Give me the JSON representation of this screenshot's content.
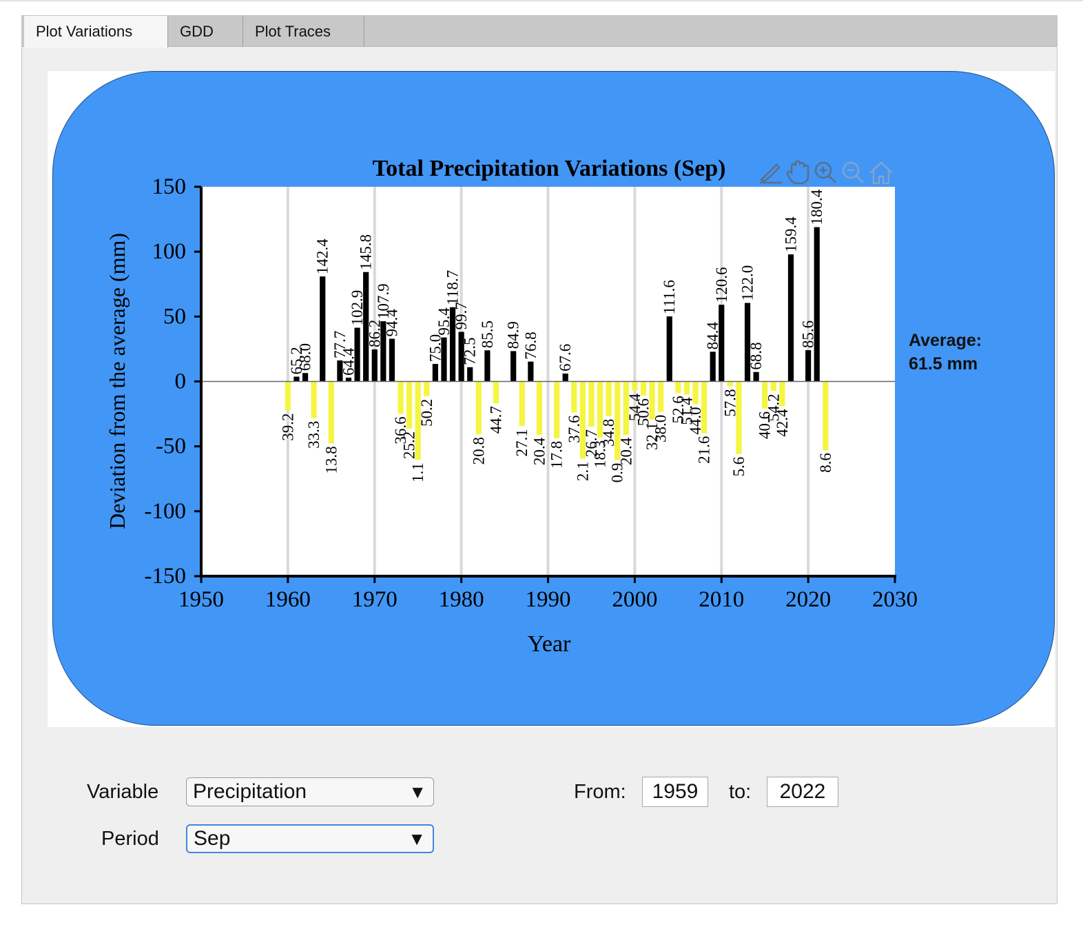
{
  "tabs": [
    {
      "label": "Plot Variations",
      "active": true
    },
    {
      "label": "GDD",
      "active": false
    },
    {
      "label": "Plot Traces",
      "active": false
    }
  ],
  "average": {
    "label": "Average:",
    "value": "61.5 mm"
  },
  "controls": {
    "variable_label": "Variable",
    "variable_value": "Precipitation",
    "period_label": "Period",
    "period_value": "Sep",
    "from_label": "From:",
    "from_value": "1959",
    "to_label": "to:",
    "to_value": "2022",
    "arrow": "▼"
  },
  "toolbar": [
    "edit-icon",
    "pan-icon",
    "zoom-in-icon",
    "zoom-out-icon",
    "home-icon"
  ],
  "colors": {
    "above": "#000000",
    "below": "#f5f542",
    "background": "#4296f5"
  },
  "chart_data": {
    "type": "bar",
    "title": "Total Precipitation Variations (Sep)",
    "xlabel": "Year",
    "ylabel": "Deviation from the average (mm)",
    "xlim": [
      1950,
      2030
    ],
    "ylim": [
      -150,
      150
    ],
    "xticks": [
      1950,
      1960,
      1970,
      1980,
      1990,
      2000,
      2010,
      2020,
      2030
    ],
    "yticks": [
      150,
      100,
      50,
      0,
      -50,
      -100,
      -150
    ],
    "grid": "x",
    "note": "bar height = total precipitation minus average (61.5 mm); label = total precipitation",
    "x": [
      1960,
      1961,
      1962,
      1963,
      1964,
      1965,
      1966,
      1967,
      1968,
      1969,
      1970,
      1971,
      1972,
      1973,
      1974,
      1975,
      1976,
      1977,
      1978,
      1979,
      1980,
      1981,
      1982,
      1983,
      1984,
      1986,
      1987,
      1988,
      1989,
      1991,
      1992,
      1993,
      1994,
      1995,
      1996,
      1997,
      1998,
      1999,
      2000,
      2001,
      2002,
      2003,
      2004,
      2005,
      2006,
      2007,
      2008,
      2009,
      2010,
      2011,
      2012,
      2013,
      2014,
      2015,
      2016,
      2017,
      2018,
      2020,
      2021,
      2022
    ],
    "labels": [
      "39.2",
      "65.2",
      "68.0",
      "33.3",
      "142.4",
      "13.8",
      "77.7",
      "64.4",
      "102.9",
      "145.8",
      "86.2",
      "107.9",
      "94.4",
      "36.6",
      "25.2",
      "1.1",
      "50.2",
      "75.0",
      "95.4",
      "118.7",
      "99.7",
      "72.5",
      "20.8",
      "85.5",
      "44.7",
      "84.9",
      "27.1",
      "76.8",
      "20.4",
      "17.8",
      "67.6",
      "37.6",
      "2.1",
      "26.7",
      "18.3",
      "34.8",
      "0.9",
      "20.4",
      "54.4",
      "50.6",
      "32.1",
      "38.0",
      "111.6",
      "52.6",
      "51.4",
      "44.0",
      "21.6",
      "84.4",
      "120.6",
      "57.8",
      "5.6",
      "122.0",
      "68.8",
      "40.6",
      "54.2",
      "42.4",
      "159.4",
      "85.6",
      "180.4",
      "8.6"
    ],
    "values": [
      -22.3,
      3.7,
      6.5,
      -28.2,
      80.9,
      -47.7,
      16.2,
      2.9,
      41.4,
      84.3,
      24.7,
      46.4,
      32.9,
      -24.9,
      -36.3,
      -60.4,
      -11.3,
      13.5,
      33.9,
      57.2,
      38.2,
      11.0,
      -40.7,
      24.0,
      -16.8,
      23.4,
      -34.4,
      15.3,
      -41.1,
      -43.7,
      6.1,
      -23.9,
      -59.4,
      -34.8,
      -43.2,
      -26.7,
      -60.6,
      -41.1,
      -7.1,
      -10.9,
      -29.4,
      -23.5,
      50.1,
      -8.9,
      -10.1,
      -17.5,
      -39.9,
      22.9,
      59.1,
      -3.7,
      -55.9,
      60.5,
      7.3,
      -20.9,
      -7.3,
      -19.1,
      97.9,
      24.1,
      118.9,
      -52.9
    ]
  }
}
